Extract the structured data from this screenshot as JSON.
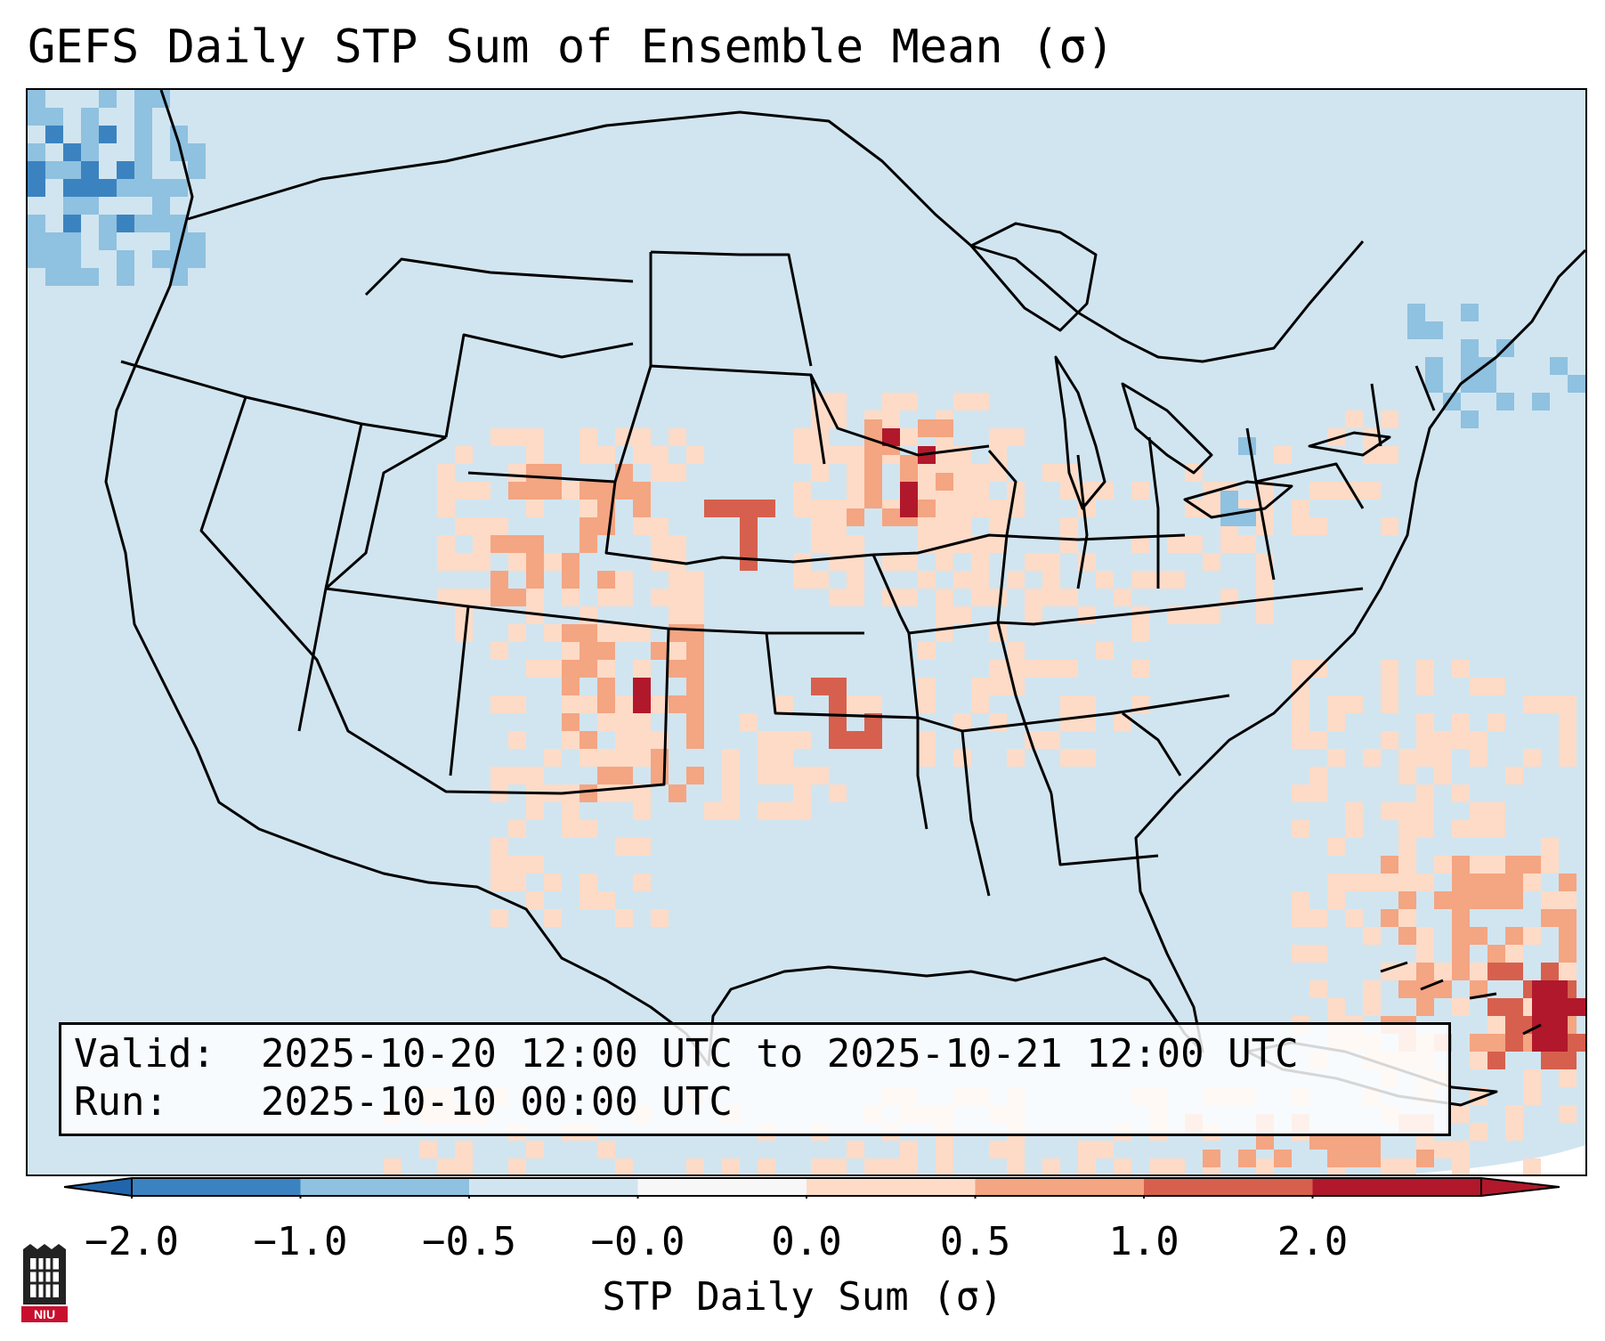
{
  "title": "GEFS Daily STP Sum of Ensemble Mean (σ)",
  "valid_box": {
    "valid_label": "Valid:",
    "valid_text": "2025-10-20 12:00 UTC to 2025-10-21 12:00 UTC",
    "run_label": "Run:",
    "run_text": "2025-10-10 00:00 UTC"
  },
  "colorbar": {
    "label": "STP Daily Sum (σ)",
    "ticks": [
      "−2.0",
      "−1.0",
      "−0.5",
      "−0.0",
      "0.0",
      "0.5",
      "1.0",
      "2.0"
    ],
    "colors": [
      "#3b83c0",
      "#8fc1e0",
      "#d1e5f0",
      "#f7f7f7",
      "#fddbc7",
      "#f4a582",
      "#d6604d",
      "#b2182b"
    ],
    "extend": "both"
  },
  "map": {
    "region": "CONUS",
    "background_color": "#d1e5f0",
    "boundary_color": "#000000"
  },
  "logo": {
    "name": "NIU",
    "color": "#c8102e"
  }
}
